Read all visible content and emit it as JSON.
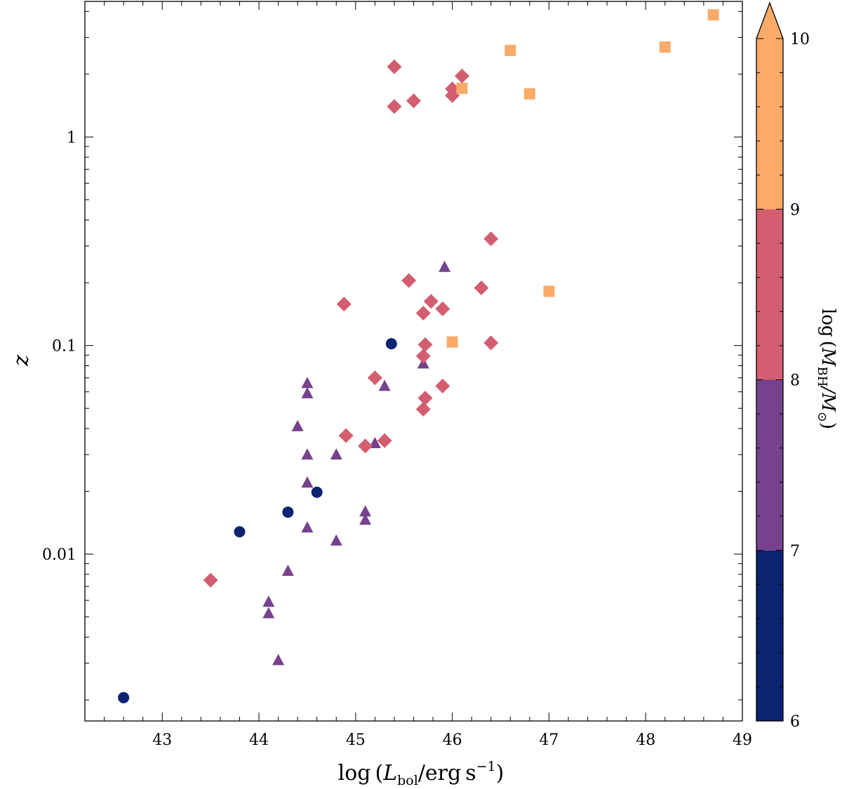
{
  "chart_data": {
    "type": "scatter",
    "title": "",
    "x_label": {
      "prefix": "log (",
      "main": "L",
      "sub": "bol",
      "units": "/erg s",
      "sup": "−1",
      "suffix": ")"
    },
    "y_label": "z",
    "xlim": [
      42.2,
      49
    ],
    "ylim_log10": [
      -2.8,
      0.65
    ],
    "y_scale": "log",
    "x_ticks": [
      43,
      44,
      45,
      46,
      47,
      48,
      49
    ],
    "x_tick_labels": [
      "43",
      "44",
      "45",
      "46",
      "47",
      "48",
      "49"
    ],
    "y_ticks": [
      0.01,
      0.1,
      1
    ],
    "y_tick_labels": [
      "0.01",
      "0.1",
      "1"
    ],
    "colorbar": {
      "label": {
        "prefix": "log (",
        "main": "M",
        "sub": "BH",
        "mid": "/M",
        "sun": "⊙",
        "suffix": ")"
      },
      "range": [
        6,
        10
      ],
      "extend": "max",
      "ticks": [
        6,
        7,
        8,
        9,
        10
      ],
      "tick_labels": [
        "6",
        "7",
        "8",
        "9",
        "10"
      ],
      "bins": [
        {
          "from": 6,
          "to": 7,
          "color": "#0a2472"
        },
        {
          "from": 7,
          "to": 8,
          "color": "#76418d"
        },
        {
          "from": 8,
          "to": 9,
          "color": "#d35e6f"
        },
        {
          "from": 9,
          "to": 10,
          "color": "#fbaa68"
        }
      ]
    },
    "series": [
      {
        "name": "log MBH 6-7",
        "marker": "circle",
        "color": "#0a2472",
        "points": [
          [
            42.6,
            0.00205
          ],
          [
            43.8,
            0.0128
          ],
          [
            44.3,
            0.0159
          ],
          [
            44.6,
            0.0198
          ],
          [
            45.37,
            0.102
          ]
        ]
      },
      {
        "name": "log MBH 7-8",
        "marker": "triangle",
        "color": "#76418d",
        "points": [
          [
            44.1,
            0.0059
          ],
          [
            44.1,
            0.0052
          ],
          [
            44.2,
            0.0031
          ],
          [
            44.3,
            0.0083
          ],
          [
            44.4,
            0.041
          ],
          [
            44.5,
            0.066
          ],
          [
            44.5,
            0.059
          ],
          [
            44.5,
            0.03
          ],
          [
            44.5,
            0.022
          ],
          [
            44.5,
            0.0134
          ],
          [
            44.8,
            0.03
          ],
          [
            44.8,
            0.0116
          ],
          [
            45.1,
            0.016
          ],
          [
            45.1,
            0.0146
          ],
          [
            45.2,
            0.034
          ],
          [
            45.3,
            0.064
          ],
          [
            45.7,
            0.082
          ],
          [
            45.92,
            0.238
          ]
        ]
      },
      {
        "name": "log MBH 8-9",
        "marker": "diamond",
        "color": "#d35e6f",
        "points": [
          [
            43.5,
            0.0075
          ],
          [
            44.88,
            0.158
          ],
          [
            44.9,
            0.037
          ],
          [
            45.1,
            0.033
          ],
          [
            45.2,
            0.07
          ],
          [
            45.3,
            0.035
          ],
          [
            45.4,
            2.17
          ],
          [
            45.4,
            1.4
          ],
          [
            45.55,
            0.205
          ],
          [
            45.6,
            1.49
          ],
          [
            45.7,
            0.143
          ],
          [
            45.72,
            0.101
          ],
          [
            45.7,
            0.089
          ],
          [
            45.72,
            0.056
          ],
          [
            45.7,
            0.0495
          ],
          [
            45.78,
            0.163
          ],
          [
            45.9,
            0.15
          ],
          [
            45.9,
            0.064
          ],
          [
            46.0,
            1.7
          ],
          [
            46.0,
            1.58
          ],
          [
            46.1,
            1.96
          ],
          [
            46.3,
            0.189
          ],
          [
            46.4,
            0.325
          ],
          [
            46.4,
            0.103
          ]
        ]
      },
      {
        "name": "log MBH 9-10",
        "marker": "square",
        "color": "#fbaa68",
        "points": [
          [
            46.0,
            0.104
          ],
          [
            46.1,
            1.71
          ],
          [
            46.6,
            2.6
          ],
          [
            46.8,
            1.61
          ],
          [
            47.0,
            0.182
          ],
          [
            48.2,
            2.7
          ],
          [
            48.7,
            3.85
          ]
        ]
      }
    ]
  }
}
